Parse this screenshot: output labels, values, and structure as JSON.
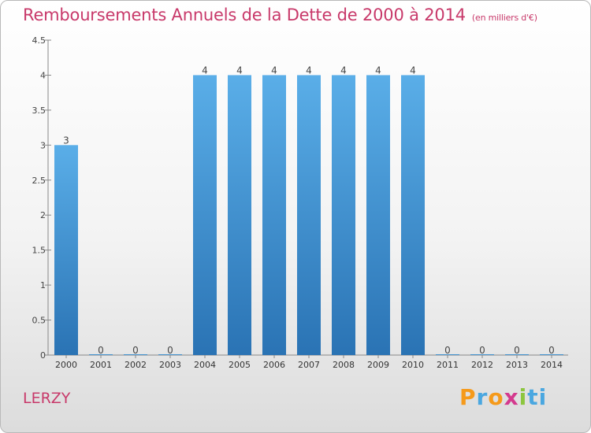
{
  "title": "Remboursements Annuels de la Dette de 2000 à 2014",
  "unit": "(en milliers d'€)",
  "commune": "LERZY",
  "logo": {
    "text": "Proxiti",
    "letters": [
      "P",
      "r",
      "o",
      "x",
      "i",
      "ti"
    ]
  },
  "colors": {
    "title": "#c8396a",
    "bar_top": "#5aaee8",
    "bar_bottom": "#2a73b4"
  },
  "chart_data": {
    "type": "bar",
    "title": "Remboursements Annuels de la Dette de 2000 à 2014",
    "xlabel": "",
    "ylabel": "",
    "categories": [
      "2000",
      "2001",
      "2002",
      "2003",
      "2004",
      "2005",
      "2006",
      "2007",
      "2008",
      "2009",
      "2010",
      "2011",
      "2012",
      "2013",
      "2014"
    ],
    "values": [
      3,
      0,
      0,
      0,
      4,
      4,
      4,
      4,
      4,
      4,
      4,
      0,
      0,
      0,
      0
    ],
    "data_labels": [
      "3",
      "0",
      "0",
      "0",
      "4",
      "4",
      "4",
      "4",
      "4",
      "4",
      "4",
      "0",
      "0",
      "0",
      "0"
    ],
    "ylim": [
      0,
      4.5
    ],
    "yticks": [
      0,
      0.5,
      1,
      1.5,
      2,
      2.5,
      3,
      3.5,
      4,
      4.5
    ],
    "ytick_labels": [
      "0",
      "0.5",
      "1",
      "1.5",
      "2",
      "2.5",
      "3",
      "3.5",
      "4",
      "4.5"
    ],
    "grid": false,
    "legend": "none"
  }
}
